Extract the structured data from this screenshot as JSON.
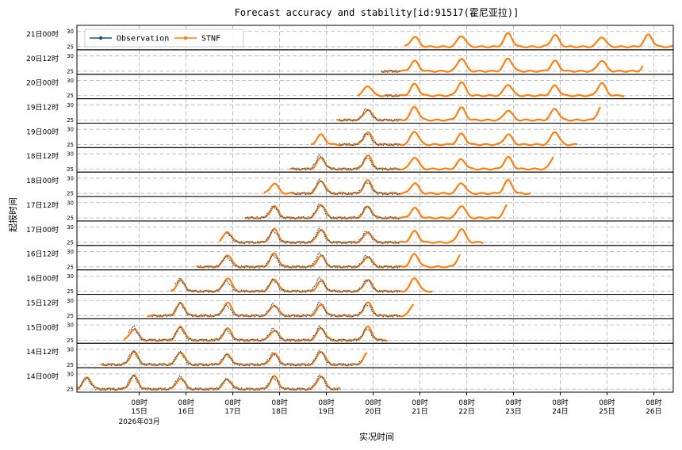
{
  "chart_data": {
    "type": "line",
    "title": "Forecast accuracy and stability[id:91517(霍尼亚拉)]",
    "xlabel": "实况时间",
    "ylabel": "起报时间",
    "x_year_month": "2026年03月",
    "x_ticks": [
      {
        "top": "08时",
        "bottom": "15日",
        "day": 15
      },
      {
        "top": "08时",
        "bottom": "16日",
        "day": 16
      },
      {
        "top": "08时",
        "bottom": "17日",
        "day": 17
      },
      {
        "top": "08时",
        "bottom": "18日",
        "day": 18
      },
      {
        "top": "08时",
        "bottom": "19日",
        "day": 19
      },
      {
        "top": "08时",
        "bottom": "20日",
        "day": 20
      },
      {
        "top": "08时",
        "bottom": "21日",
        "day": 21
      },
      {
        "top": "08时",
        "bottom": "22日",
        "day": 22
      },
      {
        "top": "08时",
        "bottom": "23日",
        "day": 23
      },
      {
        "top": "08时",
        "bottom": "24日",
        "day": 24
      },
      {
        "top": "08时",
        "bottom": "25日",
        "day": 25
      },
      {
        "top": "08时",
        "bottom": "26日",
        "day": 26
      }
    ],
    "x_range_days": [
      14.0,
      26.75
    ],
    "panel_ylim": [
      24,
      32
    ],
    "panel_yticks": [
      "25",
      "30"
    ],
    "rows": [
      {
        "label": "21日00时",
        "obs_start": 21.0,
        "obs_end": 21.0,
        "fc_start": 21.0,
        "fc_end": 26.75
      },
      {
        "label": "20日12时",
        "obs_start": 20.5,
        "obs_end": 20.9,
        "fc_start": 20.5,
        "fc_end": 26.1
      },
      {
        "label": "20日00时",
        "obs_start": 20.6,
        "obs_end": 20.9,
        "fc_start": 20.0,
        "fc_end": 25.7
      },
      {
        "label": "19日12时",
        "obs_start": 19.6,
        "obs_end": 20.9,
        "fc_start": 19.55,
        "fc_end": 25.2
      },
      {
        "label": "19日00时",
        "obs_start": 19.6,
        "obs_end": 20.9,
        "fc_start": 19.0,
        "fc_end": 24.7
      },
      {
        "label": "18日12时",
        "obs_start": 18.6,
        "obs_end": 20.9,
        "fc_start": 18.55,
        "fc_end": 24.2
      },
      {
        "label": "18日00时",
        "obs_start": 18.6,
        "obs_end": 20.9,
        "fc_start": 18.0,
        "fc_end": 23.7
      },
      {
        "label": "17日12时",
        "obs_start": 17.6,
        "obs_end": 20.9,
        "fc_start": 17.6,
        "fc_end": 23.2
      },
      {
        "label": "17日00时",
        "obs_start": 17.2,
        "obs_end": 20.9,
        "fc_start": 17.05,
        "fc_end": 22.7
      },
      {
        "label": "16日12时",
        "obs_start": 16.6,
        "obs_end": 20.9,
        "fc_start": 16.55,
        "fc_end": 22.2
      },
      {
        "label": "16日00时",
        "obs_start": 16.1,
        "obs_end": 20.9,
        "fc_start": 16.0,
        "fc_end": 21.6
      },
      {
        "label": "15日12时",
        "obs_start": 15.6,
        "obs_end": 20.9,
        "fc_start": 15.5,
        "fc_end": 21.2
      },
      {
        "label": "15日00时",
        "obs_start": 15.1,
        "obs_end": 20.6,
        "fc_start": 15.0,
        "fc_end": 20.65
      },
      {
        "label": "14日12时",
        "obs_start": 14.55,
        "obs_end": 20.1,
        "fc_start": 14.5,
        "fc_end": 20.2
      },
      {
        "label": "14日00时",
        "obs_start": 14.0,
        "obs_end": 19.6,
        "fc_start": 14.0,
        "fc_end": 19.65
      }
    ],
    "series": [
      {
        "name": "Observation",
        "color": "#1f4e79"
      },
      {
        "name": "STNF",
        "color": "#ff7f0e"
      }
    ],
    "legend_placement": "top-left",
    "grid": true
  }
}
